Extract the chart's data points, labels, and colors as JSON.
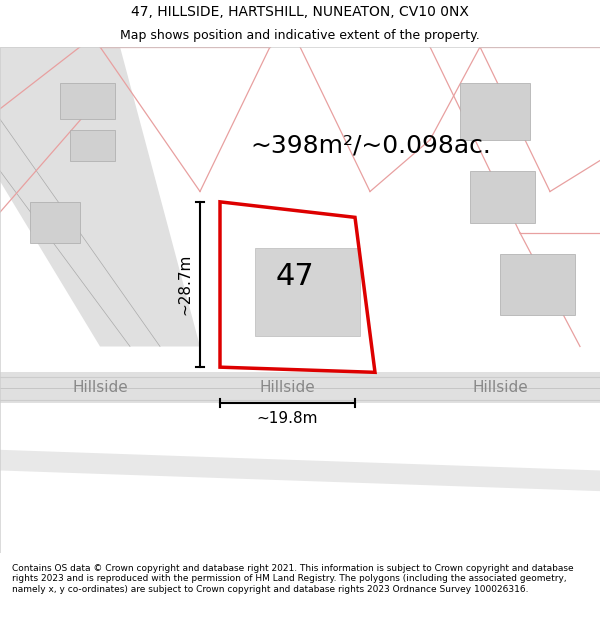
{
  "title": "47, HILLSIDE, HARTSHILL, NUNEATON, CV10 0NX",
  "subtitle": "Map shows position and indicative extent of the property.",
  "area_label": "~398m²/~0.098ac.",
  "plot_number": "47",
  "dim_vertical": "~28.7m",
  "dim_horizontal": "~19.8m",
  "road_label": "Hillside",
  "footer": "Contains OS data © Crown copyright and database right 2021. This information is subject to Crown copyright and database rights 2023 and is reproduced with the permission of HM Land Registry. The polygons (including the associated geometry, namely x, y co-ordinates) are subject to Crown copyright and database rights 2023 Ordnance Survey 100026316.",
  "bg_color": "#ffffff",
  "map_bg": "#f5f0f0",
  "road_color": "#e8e8e8",
  "plot_fill": "#ffffff",
  "plot_edge": "#dd0000",
  "building_fill": "#d8d8d8",
  "road_line_color": "#cccccc",
  "pink_line_color": "#e8a0a0",
  "title_fontsize": 10,
  "subtitle_fontsize": 9,
  "area_fontsize": 18,
  "plot_num_fontsize": 22,
  "dim_fontsize": 11,
  "road_fontsize": 11,
  "footer_fontsize": 6.5
}
